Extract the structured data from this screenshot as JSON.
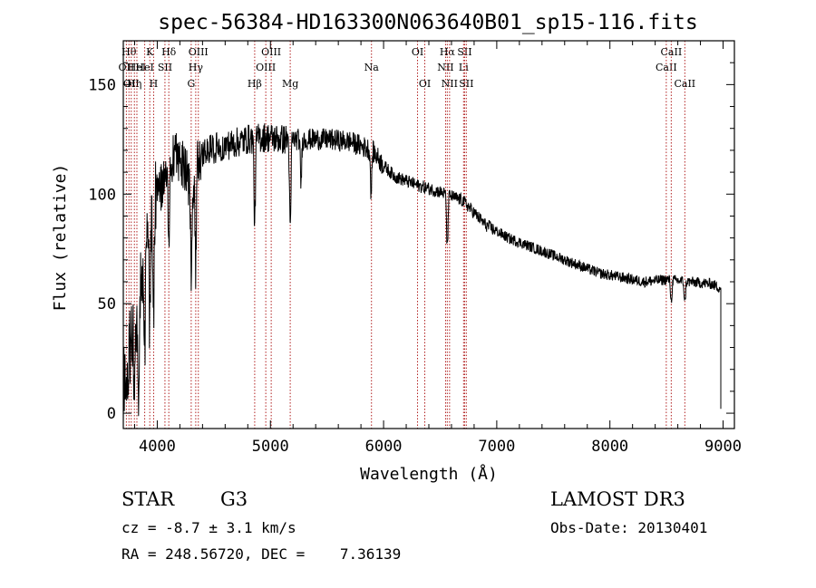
{
  "chart_data": {
    "type": "line",
    "title": "spec-56384-HD163300N063640B01_sp15-116.fits",
    "xlabel": "Wavelength (Å)",
    "ylabel": "Flux (relative)",
    "xlim": [
      3700,
      9100
    ],
    "ylim": [
      -7,
      170
    ],
    "xticks": [
      4000,
      5000,
      6000,
      7000,
      8000,
      9000
    ],
    "yticks": [
      0,
      50,
      100,
      150
    ],
    "grid": false,
    "line_color": "#000000",
    "marker_color": "#b22222",
    "spectrum_anchors": {
      "x": [
        3700,
        3760,
        3820,
        3880,
        3950,
        4050,
        4150,
        4250,
        4300,
        4350,
        4450,
        4600,
        4800,
        4950,
        5100,
        5300,
        5500,
        5700,
        5900,
        6000,
        6100,
        6300,
        6500,
        6700,
        6900,
        7100,
        7300,
        7500,
        7700,
        7900,
        8100,
        8300,
        8500,
        8700,
        8900,
        8980
      ],
      "y": [
        10,
        30,
        45,
        70,
        95,
        105,
        118,
        112,
        100,
        115,
        120,
        122,
        125,
        126,
        125,
        125,
        125,
        124,
        120,
        113,
        108,
        104,
        101,
        97,
        86,
        80,
        76,
        72,
        68,
        64,
        62,
        60,
        61,
        60,
        59,
        57
      ]
    },
    "absorption_lines": [
      {
        "x": 3798,
        "depth": 30
      },
      {
        "x": 3835,
        "depth": 45
      },
      {
        "x": 3889,
        "depth": 50
      },
      {
        "x": 3934,
        "depth": 55
      },
      {
        "x": 3968,
        "depth": 50
      },
      {
        "x": 4102,
        "depth": 40
      },
      {
        "x": 4300,
        "depth": 35
      },
      {
        "x": 4340,
        "depth": 45
      },
      {
        "x": 4861,
        "depth": 40
      },
      {
        "x": 5175,
        "depth": 45
      },
      {
        "x": 5270,
        "depth": 20
      },
      {
        "x": 5890,
        "depth": 20
      },
      {
        "x": 6563,
        "depth": 25
      },
      {
        "x": 8542,
        "depth": 10
      },
      {
        "x": 8662,
        "depth": 10
      }
    ],
    "line_markers": [
      {
        "x": 3727,
        "label": "OII",
        "row": 2
      },
      {
        "x": 3750,
        "label": "Hθ",
        "row": 1
      },
      {
        "x": 3770,
        "label": "OII",
        "row": 3
      },
      {
        "x": 3798,
        "label": "Hη",
        "row": 3
      },
      {
        "x": 3820,
        "label": "HeI",
        "row": 2
      },
      {
        "x": 3889,
        "label": "HeI",
        "row": 2
      },
      {
        "x": 3934,
        "label": "K",
        "row": 1
      },
      {
        "x": 3968,
        "label": "H",
        "row": 3
      },
      {
        "x": 4068,
        "label": "SII",
        "row": 2
      },
      {
        "x": 4102,
        "label": "Hδ",
        "row": 1
      },
      {
        "x": 4300,
        "label": "G",
        "row": 3
      },
      {
        "x": 4340,
        "label": "Hγ",
        "row": 2
      },
      {
        "x": 4363,
        "label": "OIII",
        "row": 1
      },
      {
        "x": 4861,
        "label": "Hβ",
        "row": 3
      },
      {
        "x": 4959,
        "label": "OIII",
        "row": 2
      },
      {
        "x": 5007,
        "label": "OIII",
        "row": 1
      },
      {
        "x": 5175,
        "label": "Mg",
        "row": 3
      },
      {
        "x": 5893,
        "label": "Na",
        "row": 2
      },
      {
        "x": 6300,
        "label": "OI",
        "row": 1
      },
      {
        "x": 6364,
        "label": "OI",
        "row": 3
      },
      {
        "x": 6548,
        "label": "NII",
        "row": 2
      },
      {
        "x": 6563,
        "label": "Hα",
        "row": 1
      },
      {
        "x": 6583,
        "label": "NII",
        "row": 3
      },
      {
        "x": 6707,
        "label": "Li",
        "row": 2
      },
      {
        "x": 6716,
        "label": "SII",
        "row": 1
      },
      {
        "x": 6731,
        "label": "SII",
        "row": 3
      },
      {
        "x": 8498,
        "label": "CaII",
        "row": 2
      },
      {
        "x": 8542,
        "label": "CaII",
        "row": 1
      },
      {
        "x": 8662,
        "label": "CaII",
        "row": 3
      }
    ]
  },
  "info": {
    "object_type": "STAR",
    "subclass": "G3",
    "survey": "LAMOST DR3",
    "velocity": "cz = -8.7 ± 3.1 km/s",
    "obs_date": "Obs-Date: 20130401",
    "coordinates": "RA = 248.56720, DEC =    7.36139"
  }
}
